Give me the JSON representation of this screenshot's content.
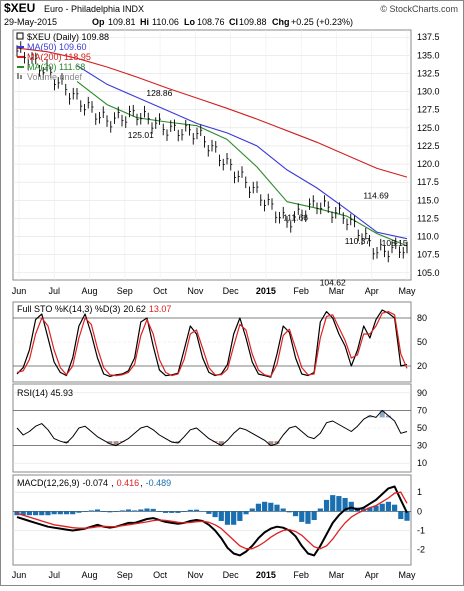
{
  "header": {
    "symbol": "$XEU",
    "name": "Euro - Philadelphia INDX",
    "watermark": "© StockCharts.com",
    "date": "29-May-2015",
    "open_label": "Op",
    "open": "109.81",
    "high_label": "Hi",
    "high": "110.06",
    "low_label": "Lo",
    "low": "108.76",
    "close_label": "Cl",
    "close": "109.88",
    "change_label": "Chg",
    "change": "+0.25 (+0.23%)"
  },
  "price_legend": [
    {
      "text": "$XEU (Daily) 109.88",
      "color": "#000000",
      "kind": "price"
    },
    {
      "text": "MA(50) 109.60",
      "color": "#3a3ad8",
      "kind": "line"
    },
    {
      "text": "MA(200) 118.95",
      "color": "#d02020",
      "kind": "line"
    },
    {
      "text": "MA(20) 111.68",
      "color": "#2a8a2a",
      "kind": "line"
    },
    {
      "text": "Volume undef",
      "color": "#888888",
      "kind": "bars"
    }
  ],
  "x_axis": {
    "month_labels": [
      "Jun",
      "Jul",
      "Aug",
      "Sep",
      "Oct",
      "Nov",
      "Dec",
      "2015",
      "Feb",
      "Mar",
      "Apr",
      "May"
    ]
  },
  "sto_panel": {
    "label_prefix": "Full STO %K(14,3) %D(3)",
    "k_value": "20.62",
    "d_value": "13.07",
    "k_color": "#000000",
    "d_color": "#e02020"
  },
  "rsi_panel": {
    "label": "RSI(14) 45.93",
    "ticks": [
      "90",
      "70",
      "50",
      "30",
      "10"
    ]
  },
  "macd_panel": {
    "label_prefix": "MACD(12,26,9)",
    "macd_value": "-0.074",
    "signal_value": "0.416",
    "hist_value": "-0.489",
    "macd_color": "#000000",
    "signal_color": "#e02020",
    "hist_color": "#1a6fb0",
    "ticks": [
      "1",
      "0",
      "-1",
      "-2"
    ]
  },
  "chart_data": [
    {
      "type": "line",
      "title": "$XEU (Daily)",
      "ylim": [
        104,
        138.5
      ],
      "y_ticks": [
        105.0,
        107.5,
        110.0,
        112.5,
        115.0,
        117.5,
        120.0,
        122.5,
        125.0,
        127.5,
        130.0,
        132.5,
        135.0,
        137.5
      ],
      "y_tick_labels": [
        "105.0",
        "107.5",
        "110.0",
        "112.5",
        "115.0",
        "117.5",
        "120.0",
        "122.5",
        "125.0",
        "127.5",
        "130.0",
        "132.5",
        "135.0",
        "137.5"
      ],
      "x": [
        0,
        4,
        8,
        12,
        16,
        20,
        24,
        28,
        32,
        36,
        40,
        44,
        48,
        52
      ],
      "series": [
        {
          "name": "$XEU",
          "color": "#000000",
          "values": [
            135.6,
            132.8,
            128.9,
            125.9,
            126.9,
            124.8,
            124.3,
            120.0,
            116.0,
            111.9,
            114.6,
            112.5,
            107.9,
            108.5
          ]
        },
        {
          "name": "MA(50)",
          "color": "#3a3ad8",
          "values": [
            null,
            null,
            133.6,
            131.0,
            129.2,
            127.4,
            125.6,
            124.3,
            122.5,
            119.2,
            116.7,
            113.7,
            110.6,
            109.7
          ]
        },
        {
          "name": "MA(20)",
          "color": "#2a8a2a",
          "values": [
            null,
            null,
            131.4,
            128.2,
            126.4,
            125.8,
            125.3,
            123.4,
            119.6,
            114.8,
            113.9,
            112.8,
            110.4,
            108.7
          ]
        },
        {
          "name": "MA(200)",
          "color": "#d02020",
          "values": [
            136.0,
            135.5,
            134.6,
            133.4,
            132.0,
            130.5,
            129.1,
            127.7,
            126.2,
            124.6,
            123.0,
            121.2,
            119.4,
            118.2
          ]
        }
      ],
      "annotations": [
        {
          "text": "128.86",
          "x": 23,
          "y": 128.86
        },
        {
          "text": "125.01",
          "x": 20,
          "y": 125.01
        },
        {
          "text": "111.66",
          "x": 45,
          "y": 111.66
        },
        {
          "text": "110.37",
          "x": 55,
          "y": 110.37
        },
        {
          "text": "114.69",
          "x": 58,
          "y": 114.69
        },
        {
          "text": "104.62",
          "x": 51,
          "y": 104.62
        },
        {
          "text": "108.15",
          "x": 61,
          "y": 108.15
        }
      ]
    },
    {
      "type": "line",
      "title": "Full STO %K(14,3) %D(3)",
      "ylim": [
        0,
        100
      ],
      "y_ticks": [
        20,
        50,
        80
      ],
      "y_tick_labels": [
        "20",
        "50",
        "80"
      ],
      "x": [
        0,
        1,
        2,
        3,
        4,
        5,
        6,
        7,
        8,
        9,
        10,
        11,
        12,
        13,
        14,
        15,
        16,
        17,
        18,
        19,
        20,
        21,
        22,
        23,
        24,
        25,
        26,
        27,
        28,
        29,
        30,
        31,
        32,
        33,
        34,
        35,
        36,
        37,
        38,
        39,
        40,
        41,
        42,
        43,
        44,
        45,
        46,
        47,
        48,
        49,
        50,
        51,
        52,
        53,
        54,
        55,
        56,
        57,
        58,
        59,
        60,
        61,
        62,
        63
      ],
      "series": [
        {
          "name": "%K",
          "color": "#000000",
          "values": [
            10,
            18,
            40,
            78,
            85,
            55,
            25,
            12,
            8,
            30,
            70,
            85,
            60,
            30,
            10,
            7,
            9,
            10,
            14,
            30,
            75,
            80,
            45,
            15,
            8,
            9,
            11,
            40,
            70,
            60,
            30,
            12,
            8,
            10,
            22,
            60,
            80,
            55,
            25,
            10,
            8,
            6,
            35,
            70,
            62,
            30,
            10,
            8,
            12,
            75,
            88,
            80,
            60,
            45,
            20,
            40,
            70,
            55,
            78,
            90,
            86,
            80,
            20,
            22
          ]
        },
        {
          "name": "%D",
          "color": "#e02020",
          "values": [
            12,
            14,
            28,
            60,
            80,
            70,
            40,
            18,
            9,
            20,
            55,
            80,
            72,
            42,
            18,
            9,
            8,
            9,
            12,
            22,
            58,
            78,
            60,
            28,
            12,
            8,
            10,
            28,
            60,
            65,
            42,
            18,
            9,
            9,
            16,
            45,
            72,
            65,
            35,
            15,
            9,
            7,
            22,
            58,
            66,
            42,
            18,
            9,
            10,
            55,
            82,
            84,
            68,
            52,
            30,
            34,
            60,
            60,
            70,
            86,
            88,
            84,
            35,
            17
          ]
        }
      ]
    },
    {
      "type": "line",
      "title": "RSI(14)",
      "ylim": [
        0,
        100
      ],
      "y_ticks": [
        10,
        30,
        50,
        70,
        90
      ],
      "y_tick_labels": [
        "10",
        "30",
        "50",
        "70",
        "90"
      ],
      "x": [
        0,
        1,
        2,
        3,
        4,
        5,
        6,
        7,
        8,
        9,
        10,
        11,
        12,
        13,
        14,
        15,
        16,
        17,
        18,
        19,
        20,
        21,
        22,
        23,
        24,
        25,
        26,
        27,
        28,
        29,
        30,
        31,
        32,
        33,
        34,
        35,
        36,
        37,
        38,
        39,
        40,
        41,
        42,
        43,
        44,
        45,
        46,
        47,
        48,
        49,
        50,
        51,
        52,
        53,
        54,
        55,
        56,
        57,
        58,
        59,
        60,
        61,
        62,
        63
      ],
      "series": [
        {
          "name": "RSI(14)",
          "color": "#000000",
          "values": [
            50,
            42,
            46,
            52,
            55,
            48,
            38,
            35,
            33,
            40,
            50,
            52,
            46,
            40,
            36,
            32,
            30,
            34,
            38,
            44,
            50,
            52,
            48,
            42,
            38,
            34,
            33,
            40,
            48,
            50,
            44,
            38,
            34,
            30,
            36,
            44,
            50,
            48,
            44,
            40,
            36,
            30,
            32,
            42,
            50,
            52,
            46,
            40,
            38,
            44,
            56,
            58,
            54,
            50,
            46,
            52,
            60,
            64,
            62,
            70,
            64,
            58,
            44,
            46
          ]
        }
      ]
    },
    {
      "type": "line",
      "title": "MACD(12,26,9)",
      "ylim": [
        -2.8,
        1.9
      ],
      "y_ticks": [
        -2,
        -1,
        0,
        1
      ],
      "y_tick_labels": [
        "-2",
        "-1",
        "0",
        "1"
      ],
      "x": [
        0,
        1,
        2,
        3,
        4,
        5,
        6,
        7,
        8,
        9,
        10,
        11,
        12,
        13,
        14,
        15,
        16,
        17,
        18,
        19,
        20,
        21,
        22,
        23,
        24,
        25,
        26,
        27,
        28,
        29,
        30,
        31,
        32,
        33,
        34,
        35,
        36,
        37,
        38,
        39,
        40,
        41,
        42,
        43,
        44,
        45,
        46,
        47,
        48,
        49,
        50,
        51,
        52,
        53,
        54,
        55,
        56,
        57,
        58,
        59,
        60,
        61,
        62,
        63
      ],
      "series": [
        {
          "name": "MACD",
          "color": "#000000",
          "values": [
            -0.3,
            -0.4,
            -0.5,
            -0.6,
            -0.7,
            -0.8,
            -0.85,
            -0.9,
            -0.95,
            -1.0,
            -0.95,
            -0.9,
            -0.8,
            -0.7,
            -0.8,
            -0.85,
            -0.8,
            -0.7,
            -0.6,
            -0.6,
            -0.5,
            -0.4,
            -0.35,
            -0.45,
            -0.55,
            -0.6,
            -0.65,
            -0.6,
            -0.5,
            -0.45,
            -0.5,
            -0.7,
            -1.0,
            -1.4,
            -1.9,
            -2.2,
            -2.3,
            -2.1,
            -1.8,
            -1.4,
            -1.1,
            -0.9,
            -0.8,
            -0.85,
            -1.0,
            -1.3,
            -1.8,
            -2.2,
            -2.3,
            -1.8,
            -1.2,
            -0.6,
            -0.2,
            0.1,
            0.2,
            0.1,
            0.2,
            0.4,
            0.6,
            0.9,
            1.2,
            1.3,
            0.6,
            -0.07
          ]
        },
        {
          "name": "Signal",
          "color": "#e02020",
          "values": [
            -0.1,
            -0.2,
            -0.3,
            -0.4,
            -0.5,
            -0.6,
            -0.7,
            -0.75,
            -0.8,
            -0.85,
            -0.88,
            -0.88,
            -0.85,
            -0.8,
            -0.78,
            -0.8,
            -0.8,
            -0.75,
            -0.7,
            -0.65,
            -0.6,
            -0.55,
            -0.48,
            -0.45,
            -0.47,
            -0.52,
            -0.57,
            -0.6,
            -0.58,
            -0.54,
            -0.52,
            -0.57,
            -0.7,
            -0.9,
            -1.2,
            -1.5,
            -1.8,
            -1.95,
            -1.95,
            -1.8,
            -1.6,
            -1.35,
            -1.15,
            -1.0,
            -0.95,
            -1.05,
            -1.25,
            -1.55,
            -1.85,
            -1.95,
            -1.8,
            -1.45,
            -1.0,
            -0.6,
            -0.3,
            -0.1,
            0.05,
            0.2,
            0.3,
            0.5,
            0.7,
            0.95,
            1.0,
            0.42
          ]
        }
      ]
    }
  ]
}
